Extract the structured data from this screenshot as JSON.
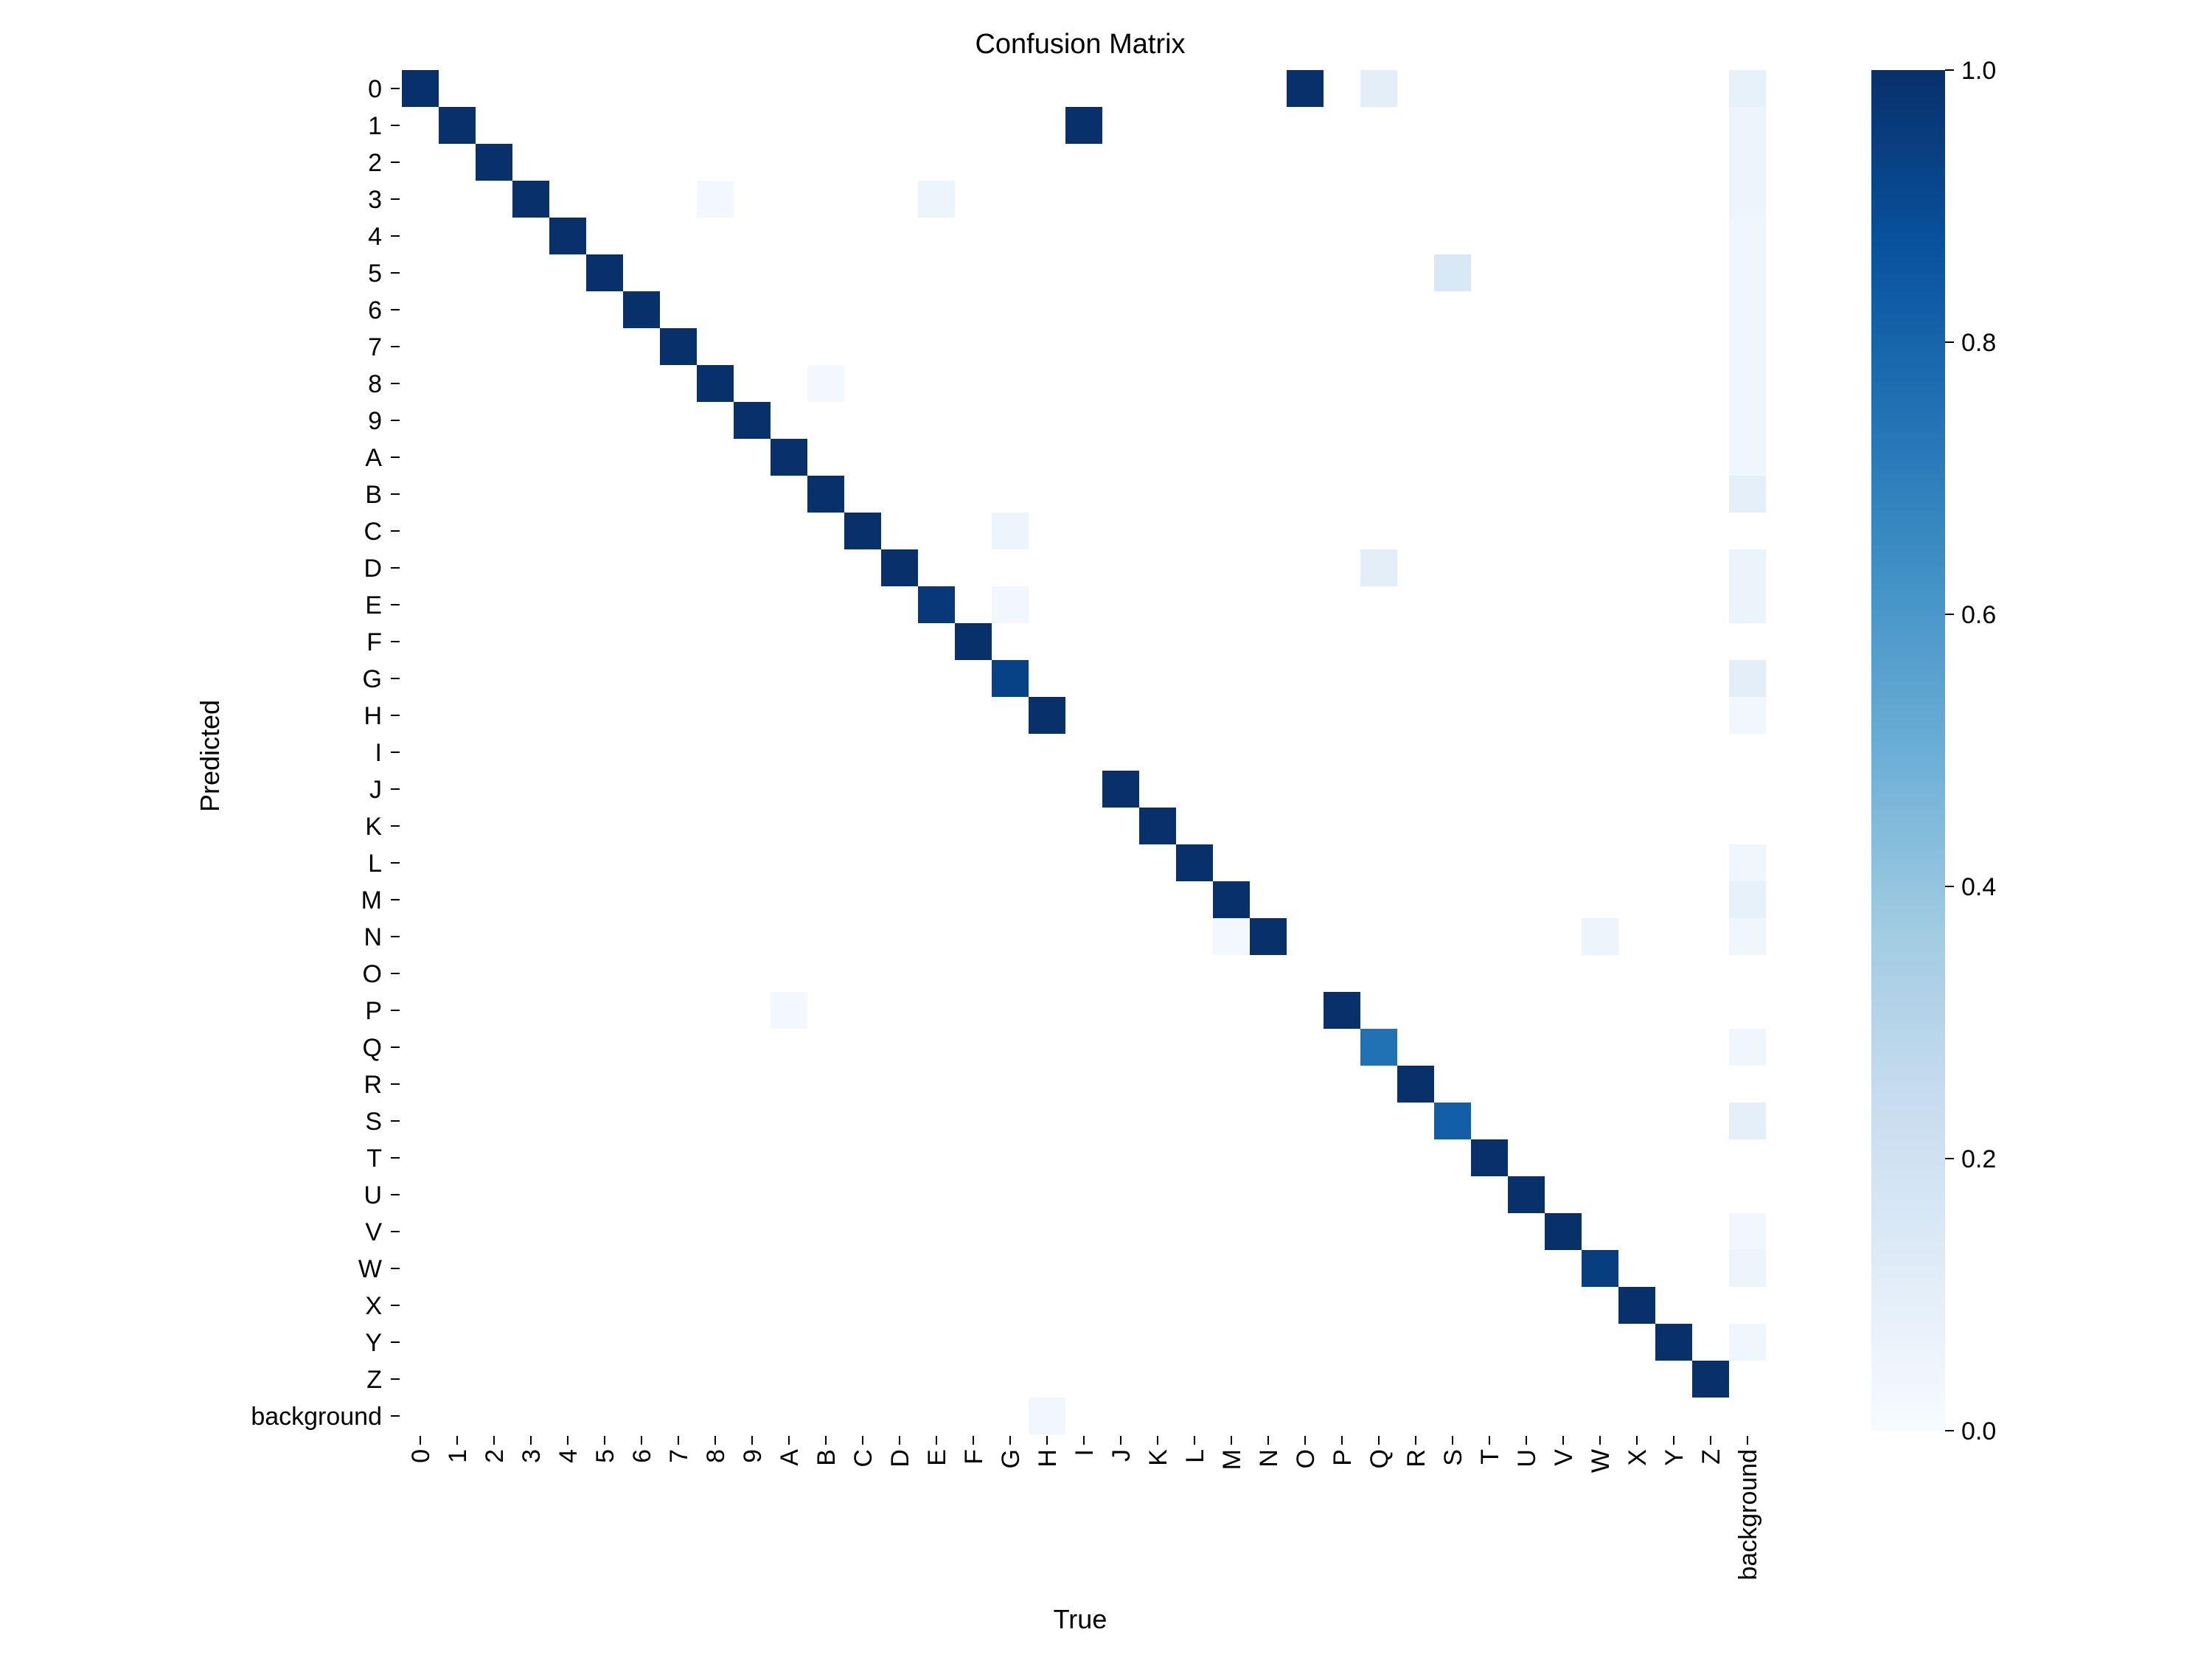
{
  "chart_data": {
    "type": "heatmap",
    "title": "Confusion Matrix",
    "xlabel": "True",
    "ylabel": "Predicted",
    "x_categories": [
      "0",
      "1",
      "2",
      "3",
      "4",
      "5",
      "6",
      "7",
      "8",
      "9",
      "A",
      "B",
      "C",
      "D",
      "E",
      "F",
      "G",
      "H",
      "I",
      "J",
      "K",
      "L",
      "M",
      "N",
      "O",
      "P",
      "Q",
      "R",
      "S",
      "T",
      "U",
      "V",
      "W",
      "X",
      "Y",
      "Z",
      "background"
    ],
    "y_categories": [
      "0",
      "1",
      "2",
      "3",
      "4",
      "5",
      "6",
      "7",
      "8",
      "9",
      "A",
      "B",
      "C",
      "D",
      "E",
      "F",
      "G",
      "H",
      "I",
      "J",
      "K",
      "L",
      "M",
      "N",
      "O",
      "P",
      "Q",
      "R",
      "S",
      "T",
      "U",
      "V",
      "W",
      "X",
      "Y",
      "Z",
      "background"
    ],
    "colormap": "Blues",
    "color_range": [
      0,
      1
    ],
    "colorbar_ticks": [
      "0.0",
      "0.2",
      "0.4",
      "0.6",
      "0.8",
      "1.0"
    ],
    "cells": [
      {
        "pred": "0",
        "true": "0",
        "value": 1.0
      },
      {
        "pred": "0",
        "true": "O",
        "value": 1.0
      },
      {
        "pred": "0",
        "true": "Q",
        "value": 0.1
      },
      {
        "pred": "0",
        "true": "background",
        "value": 0.08
      },
      {
        "pred": "1",
        "true": "1",
        "value": 1.0
      },
      {
        "pred": "1",
        "true": "I",
        "value": 1.0
      },
      {
        "pred": "1",
        "true": "background",
        "value": 0.05
      },
      {
        "pred": "2",
        "true": "2",
        "value": 1.0
      },
      {
        "pred": "2",
        "true": "background",
        "value": 0.05
      },
      {
        "pred": "3",
        "true": "3",
        "value": 1.0
      },
      {
        "pred": "3",
        "true": "8",
        "value": 0.02
      },
      {
        "pred": "3",
        "true": "E",
        "value": 0.05
      },
      {
        "pred": "3",
        "true": "background",
        "value": 0.05
      },
      {
        "pred": "4",
        "true": "4",
        "value": 1.0
      },
      {
        "pred": "4",
        "true": "background",
        "value": 0.04
      },
      {
        "pred": "5",
        "true": "5",
        "value": 1.0
      },
      {
        "pred": "5",
        "true": "S",
        "value": 0.15
      },
      {
        "pred": "5",
        "true": "background",
        "value": 0.04
      },
      {
        "pred": "6",
        "true": "6",
        "value": 1.0
      },
      {
        "pred": "6",
        "true": "background",
        "value": 0.04
      },
      {
        "pred": "7",
        "true": "7",
        "value": 1.0
      },
      {
        "pred": "7",
        "true": "background",
        "value": 0.04
      },
      {
        "pred": "8",
        "true": "8",
        "value": 1.0
      },
      {
        "pred": "8",
        "true": "B",
        "value": 0.02
      },
      {
        "pred": "8",
        "true": "background",
        "value": 0.04
      },
      {
        "pred": "9",
        "true": "9",
        "value": 1.0
      },
      {
        "pred": "9",
        "true": "background",
        "value": 0.04
      },
      {
        "pred": "A",
        "true": "A",
        "value": 1.0
      },
      {
        "pred": "A",
        "true": "background",
        "value": 0.04
      },
      {
        "pred": "B",
        "true": "B",
        "value": 1.0
      },
      {
        "pred": "B",
        "true": "background",
        "value": 0.09
      },
      {
        "pred": "C",
        "true": "C",
        "value": 1.0
      },
      {
        "pred": "C",
        "true": "G",
        "value": 0.05
      },
      {
        "pred": "D",
        "true": "D",
        "value": 1.0
      },
      {
        "pred": "D",
        "true": "Q",
        "value": 0.1
      },
      {
        "pred": "D",
        "true": "background",
        "value": 0.06
      },
      {
        "pred": "E",
        "true": "E",
        "value": 0.97
      },
      {
        "pred": "E",
        "true": "G",
        "value": 0.03
      },
      {
        "pred": "E",
        "true": "background",
        "value": 0.06
      },
      {
        "pred": "F",
        "true": "F",
        "value": 1.0
      },
      {
        "pred": "G",
        "true": "G",
        "value": 0.93
      },
      {
        "pred": "G",
        "true": "background",
        "value": 0.1
      },
      {
        "pred": "H",
        "true": "H",
        "value": 1.0
      },
      {
        "pred": "H",
        "true": "background",
        "value": 0.03
      },
      {
        "pred": "J",
        "true": "J",
        "value": 1.0
      },
      {
        "pred": "K",
        "true": "K",
        "value": 1.0
      },
      {
        "pred": "L",
        "true": "L",
        "value": 1.0
      },
      {
        "pred": "L",
        "true": "background",
        "value": 0.04
      },
      {
        "pred": "M",
        "true": "M",
        "value": 1.0
      },
      {
        "pred": "M",
        "true": "background",
        "value": 0.08
      },
      {
        "pred": "N",
        "true": "M",
        "value": 0.02
      },
      {
        "pred": "N",
        "true": "N",
        "value": 1.0
      },
      {
        "pred": "N",
        "true": "W",
        "value": 0.05
      },
      {
        "pred": "N",
        "true": "background",
        "value": 0.04
      },
      {
        "pred": "P",
        "true": "A",
        "value": 0.02
      },
      {
        "pred": "P",
        "true": "P",
        "value": 1.0
      },
      {
        "pred": "Q",
        "true": "Q",
        "value": 0.75
      },
      {
        "pred": "Q",
        "true": "background",
        "value": 0.04
      },
      {
        "pred": "R",
        "true": "R",
        "value": 1.0
      },
      {
        "pred": "S",
        "true": "S",
        "value": 0.82
      },
      {
        "pred": "S",
        "true": "background",
        "value": 0.09
      },
      {
        "pred": "T",
        "true": "T",
        "value": 1.0
      },
      {
        "pred": "U",
        "true": "U",
        "value": 1.0
      },
      {
        "pred": "V",
        "true": "V",
        "value": 1.0
      },
      {
        "pred": "V",
        "true": "background",
        "value": 0.03
      },
      {
        "pred": "W",
        "true": "W",
        "value": 0.95
      },
      {
        "pred": "W",
        "true": "background",
        "value": 0.05
      },
      {
        "pred": "X",
        "true": "X",
        "value": 1.0
      },
      {
        "pred": "Y",
        "true": "Y",
        "value": 1.0
      },
      {
        "pred": "Y",
        "true": "background",
        "value": 0.04
      },
      {
        "pred": "Z",
        "true": "Z",
        "value": 1.0
      },
      {
        "pred": "background",
        "true": "H",
        "value": 0.03
      }
    ]
  }
}
